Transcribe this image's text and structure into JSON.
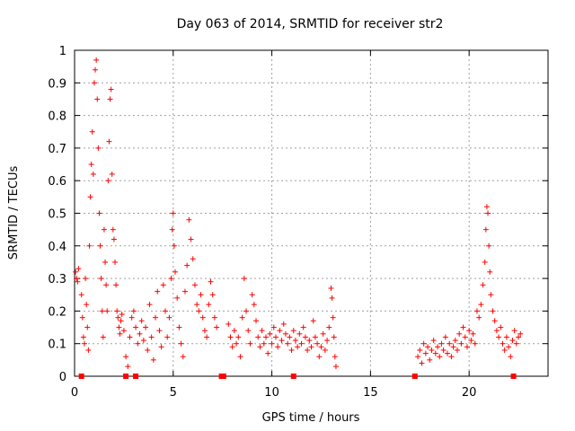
{
  "chart_data": {
    "type": "scatter",
    "title": "Day 063 of 2014, SRMTID for receiver str2",
    "xlabel": "GPS time / hours",
    "ylabel": "SRMTID / TECUs",
    "xlim": [
      0,
      24
    ],
    "ylim": [
      0,
      1
    ],
    "grid": true,
    "series_color": "#ff0000",
    "x_ticks": [
      0,
      5,
      10,
      15,
      20
    ],
    "x_tick_labels": [
      "0",
      "5",
      "10",
      "15",
      "20"
    ],
    "y_ticks": [
      0,
      0.1,
      0.2,
      0.3,
      0.4,
      0.5,
      0.6,
      0.7,
      0.8,
      0.9,
      1
    ],
    "y_tick_labels": [
      "0",
      "0.1",
      "0.2",
      "0.3",
      "0.4",
      "0.5",
      "0.6",
      "0.7",
      "0.8",
      "0.9",
      "1"
    ],
    "series": [
      {
        "name": "SRMTID",
        "marker": "+",
        "points": [
          [
            0.05,
            0.32
          ],
          [
            0.1,
            0.3
          ],
          [
            0.15,
            0.29
          ],
          [
            0.2,
            0.33
          ],
          [
            0.35,
            0.25
          ],
          [
            0.4,
            0.18
          ],
          [
            0.45,
            0.12
          ],
          [
            0.5,
            0.1
          ],
          [
            0.55,
            0.3
          ],
          [
            0.6,
            0.22
          ],
          [
            0.65,
            0.15
          ],
          [
            0.7,
            0.08
          ],
          [
            0.75,
            0.4
          ],
          [
            0.8,
            0.55
          ],
          [
            0.85,
            0.65
          ],
          [
            0.9,
            0.75
          ],
          [
            0.95,
            0.62
          ],
          [
            1.0,
            0.9
          ],
          [
            1.05,
            0.94
          ],
          [
            1.1,
            0.97
          ],
          [
            1.15,
            0.85
          ],
          [
            1.2,
            0.7
          ],
          [
            1.25,
            0.5
          ],
          [
            1.3,
            0.4
          ],
          [
            1.35,
            0.3
          ],
          [
            1.4,
            0.2
          ],
          [
            1.45,
            0.12
          ],
          [
            1.5,
            0.45
          ],
          [
            1.55,
            0.35
          ],
          [
            1.6,
            0.28
          ],
          [
            1.65,
            0.2
          ],
          [
            1.7,
            0.6
          ],
          [
            1.75,
            0.72
          ],
          [
            1.8,
            0.85
          ],
          [
            1.85,
            0.88
          ],
          [
            1.9,
            0.62
          ],
          [
            1.95,
            0.45
          ],
          [
            2.0,
            0.42
          ],
          [
            2.05,
            0.35
          ],
          [
            2.1,
            0.28
          ],
          [
            2.15,
            0.2
          ],
          [
            2.2,
            0.18
          ],
          [
            2.25,
            0.15
          ],
          [
            2.3,
            0.13
          ],
          [
            2.35,
            0.17
          ],
          [
            2.4,
            0.19
          ],
          [
            2.5,
            0.14
          ],
          [
            2.6,
            0.06
          ],
          [
            2.7,
            0.03
          ],
          [
            2.8,
            0.12
          ],
          [
            2.9,
            0.18
          ],
          [
            3.0,
            0.2
          ],
          [
            3.1,
            0.15
          ],
          [
            3.2,
            0.1
          ],
          [
            3.3,
            0.13
          ],
          [
            3.4,
            0.17
          ],
          [
            3.5,
            0.11
          ],
          [
            3.6,
            0.15
          ],
          [
            3.7,
            0.08
          ],
          [
            3.8,
            0.22
          ],
          [
            3.9,
            0.12
          ],
          [
            4.0,
            0.05
          ],
          [
            4.1,
            0.18
          ],
          [
            4.2,
            0.26
          ],
          [
            4.3,
            0.14
          ],
          [
            4.4,
            0.09
          ],
          [
            4.5,
            0.28
          ],
          [
            4.6,
            0.2
          ],
          [
            4.7,
            0.12
          ],
          [
            4.8,
            0.18
          ],
          [
            4.9,
            0.3
          ],
          [
            4.95,
            0.45
          ],
          [
            5.0,
            0.5
          ],
          [
            5.05,
            0.4
          ],
          [
            5.1,
            0.32
          ],
          [
            5.2,
            0.24
          ],
          [
            5.3,
            0.15
          ],
          [
            5.4,
            0.1
          ],
          [
            5.5,
            0.06
          ],
          [
            5.6,
            0.26
          ],
          [
            5.7,
            0.34
          ],
          [
            5.8,
            0.48
          ],
          [
            5.9,
            0.42
          ],
          [
            6.0,
            0.36
          ],
          [
            6.1,
            0.28
          ],
          [
            6.2,
            0.22
          ],
          [
            6.3,
            0.2
          ],
          [
            6.4,
            0.25
          ],
          [
            6.5,
            0.18
          ],
          [
            6.6,
            0.14
          ],
          [
            6.7,
            0.12
          ],
          [
            6.8,
            0.22
          ],
          [
            6.9,
            0.29
          ],
          [
            7.0,
            0.25
          ],
          [
            7.1,
            0.18
          ],
          [
            7.2,
            0.15
          ],
          [
            7.8,
            0.16
          ],
          [
            7.9,
            0.12
          ],
          [
            8.0,
            0.09
          ],
          [
            8.1,
            0.14
          ],
          [
            8.2,
            0.1
          ],
          [
            8.3,
            0.12
          ],
          [
            8.4,
            0.06
          ],
          [
            8.5,
            0.18
          ],
          [
            8.6,
            0.3
          ],
          [
            8.7,
            0.2
          ],
          [
            8.8,
            0.14
          ],
          [
            8.9,
            0.1
          ],
          [
            9.0,
            0.25
          ],
          [
            9.1,
            0.22
          ],
          [
            9.2,
            0.17
          ],
          [
            9.3,
            0.12
          ],
          [
            9.4,
            0.09
          ],
          [
            9.5,
            0.14
          ],
          [
            9.6,
            0.1
          ],
          [
            9.7,
            0.12
          ],
          [
            9.8,
            0.07
          ],
          [
            9.9,
            0.13
          ],
          [
            10.0,
            0.1
          ],
          [
            10.1,
            0.15
          ],
          [
            10.2,
            0.12
          ],
          [
            10.3,
            0.09
          ],
          [
            10.4,
            0.14
          ],
          [
            10.5,
            0.11
          ],
          [
            10.6,
            0.16
          ],
          [
            10.7,
            0.13
          ],
          [
            10.8,
            0.1
          ],
          [
            10.9,
            0.12
          ],
          [
            11.0,
            0.08
          ],
          [
            11.1,
            0.14
          ],
          [
            11.2,
            0.11
          ],
          [
            11.3,
            0.09
          ],
          [
            11.4,
            0.13
          ],
          [
            11.5,
            0.1
          ],
          [
            11.6,
            0.15
          ],
          [
            11.7,
            0.12
          ],
          [
            11.8,
            0.08
          ],
          [
            11.9,
            0.11
          ],
          [
            12.0,
            0.09
          ],
          [
            12.1,
            0.17
          ],
          [
            12.2,
            0.12
          ],
          [
            12.3,
            0.1
          ],
          [
            12.4,
            0.06
          ],
          [
            12.5,
            0.09
          ],
          [
            12.6,
            0.13
          ],
          [
            12.7,
            0.08
          ],
          [
            12.8,
            0.11
          ],
          [
            12.9,
            0.15
          ],
          [
            13.0,
            0.27
          ],
          [
            13.05,
            0.24
          ],
          [
            13.1,
            0.18
          ],
          [
            13.15,
            0.12
          ],
          [
            13.2,
            0.06
          ],
          [
            13.25,
            0.03
          ],
          [
            17.4,
            0.06
          ],
          [
            17.5,
            0.08
          ],
          [
            17.6,
            0.04
          ],
          [
            17.7,
            0.1
          ],
          [
            17.8,
            0.07
          ],
          [
            17.9,
            0.09
          ],
          [
            18.0,
            0.05
          ],
          [
            18.1,
            0.08
          ],
          [
            18.2,
            0.11
          ],
          [
            18.3,
            0.07
          ],
          [
            18.4,
            0.09
          ],
          [
            18.5,
            0.06
          ],
          [
            18.6,
            0.1
          ],
          [
            18.7,
            0.08
          ],
          [
            18.8,
            0.12
          ],
          [
            18.9,
            0.07
          ],
          [
            19.0,
            0.1
          ],
          [
            19.1,
            0.06
          ],
          [
            19.2,
            0.09
          ],
          [
            19.3,
            0.11
          ],
          [
            19.4,
            0.08
          ],
          [
            19.5,
            0.13
          ],
          [
            19.6,
            0.1
          ],
          [
            19.7,
            0.15
          ],
          [
            19.8,
            0.12
          ],
          [
            19.9,
            0.09
          ],
          [
            20.0,
            0.14
          ],
          [
            20.1,
            0.11
          ],
          [
            20.2,
            0.13
          ],
          [
            20.3,
            0.1
          ],
          [
            20.4,
            0.2
          ],
          [
            20.5,
            0.18
          ],
          [
            20.6,
            0.22
          ],
          [
            20.7,
            0.28
          ],
          [
            20.8,
            0.35
          ],
          [
            20.85,
            0.45
          ],
          [
            20.9,
            0.52
          ],
          [
            20.95,
            0.5
          ],
          [
            21.0,
            0.4
          ],
          [
            21.05,
            0.32
          ],
          [
            21.1,
            0.25
          ],
          [
            21.2,
            0.2
          ],
          [
            21.3,
            0.17
          ],
          [
            21.4,
            0.14
          ],
          [
            21.5,
            0.12
          ],
          [
            21.6,
            0.15
          ],
          [
            21.7,
            0.1
          ],
          [
            21.8,
            0.08
          ],
          [
            21.9,
            0.12
          ],
          [
            22.0,
            0.09
          ],
          [
            22.1,
            0.06
          ],
          [
            22.2,
            0.11
          ],
          [
            22.3,
            0.14
          ],
          [
            22.4,
            0.1
          ],
          [
            22.5,
            0.12
          ],
          [
            22.6,
            0.13
          ]
        ]
      },
      {
        "name": "zero-level markers",
        "marker": "square",
        "points": [
          [
            0.35,
            0
          ],
          [
            2.6,
            0
          ],
          [
            3.1,
            0
          ],
          [
            7.45,
            0
          ],
          [
            7.55,
            0
          ],
          [
            11.1,
            0
          ],
          [
            17.25,
            0
          ],
          [
            22.25,
            0
          ]
        ]
      }
    ]
  }
}
